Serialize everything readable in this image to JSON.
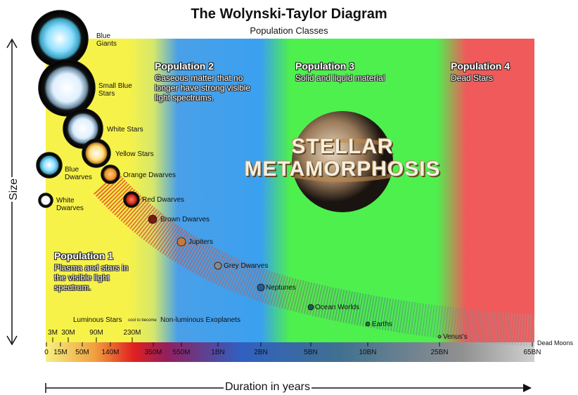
{
  "title": "The Wolynski-Taylor Diagram",
  "subtitle": "Population Classes",
  "axes": {
    "y_label": "Size",
    "x_label": "Duration in years"
  },
  "populations": [
    {
      "title": "Population 1",
      "description": "Plasma and stars in the visible light spectrum."
    },
    {
      "title": "Population 2",
      "description": "Gaseous matter that no longer have strong visible light spectrums."
    },
    {
      "title": "Population 3",
      "description": "Solid and liquid material"
    },
    {
      "title": "Population 4",
      "description": "Dead Stars"
    }
  ],
  "objects": [
    {
      "label": "Blue Giants"
    },
    {
      "label": "Small Blue Stars"
    },
    {
      "label": "White Stars"
    },
    {
      "label": "Yellow Stars"
    },
    {
      "label": "Blue Dwarves"
    },
    {
      "label": "Orange Dwarves"
    },
    {
      "label": "White Dwarves"
    },
    {
      "label": "Red Dwarves"
    },
    {
      "label": "Brown Dwarves"
    },
    {
      "label": "Jupiters"
    },
    {
      "label": "Grey Dwarves"
    },
    {
      "label": "Neptunes"
    },
    {
      "label": "Ocean Worlds"
    },
    {
      "label": "Earths"
    },
    {
      "label": "Venus's"
    }
  ],
  "overlay_text": [
    "STELLAR",
    "METAMORPHOSIS"
  ],
  "footnote": {
    "left": "Luminous Stars",
    "middle": "cool to become",
    "right": "Non-luminous Exoplanets"
  },
  "scale": {
    "upper_ticks": [
      "3M",
      "30M",
      "90M",
      "230M"
    ],
    "lower_ticks": [
      "0",
      "15M",
      "50M",
      "140M",
      "350M",
      "550M",
      "1BN",
      "2BN",
      "5BN",
      "10BN",
      "25BN",
      "65BN"
    ],
    "end_label": "Dead Moons"
  }
}
